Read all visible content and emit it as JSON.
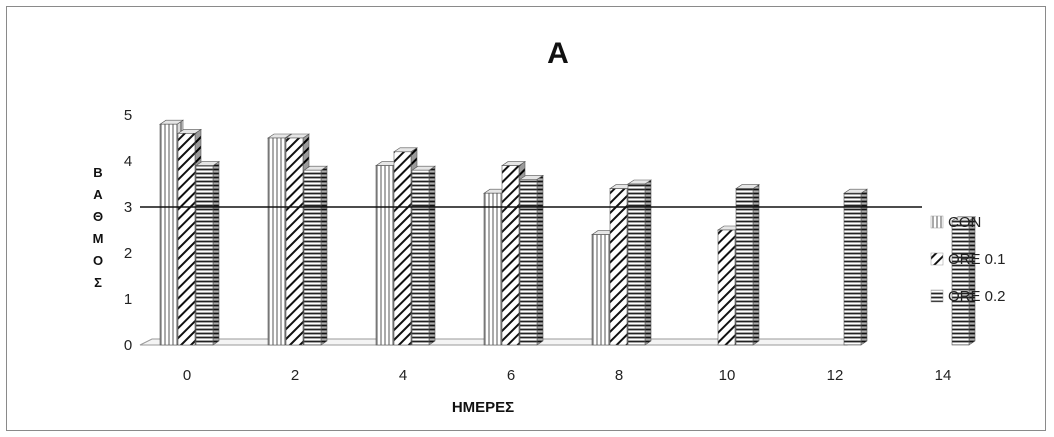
{
  "chart_data": {
    "type": "bar",
    "title": "A",
    "xlabel": "ΗΜΕΡΕΣ",
    "ylabel": "ΒΑΘΜΟΣ",
    "categories": [
      "0",
      "2",
      "4",
      "6",
      "8",
      "10",
      "12",
      "14"
    ],
    "yticks": [
      "0",
      "1",
      "2",
      "3",
      "4",
      "5"
    ],
    "ylim": [
      0,
      5
    ],
    "reference_line": 3,
    "legend_position": "right",
    "grid": false,
    "series": [
      {
        "name": "CON",
        "pattern": "vertical-lines",
        "values": [
          4.8,
          4.5,
          3.9,
          3.3,
          2.4,
          null,
          null,
          null
        ]
      },
      {
        "name": "ORE 0.1",
        "pattern": "diagonal-lines",
        "values": [
          4.6,
          4.5,
          4.2,
          3.9,
          3.4,
          2.5,
          null,
          null
        ]
      },
      {
        "name": "ORE 0.2",
        "pattern": "horizontal-lines",
        "values": [
          3.9,
          3.8,
          3.8,
          3.6,
          3.5,
          3.4,
          3.3,
          2.7
        ]
      }
    ]
  }
}
